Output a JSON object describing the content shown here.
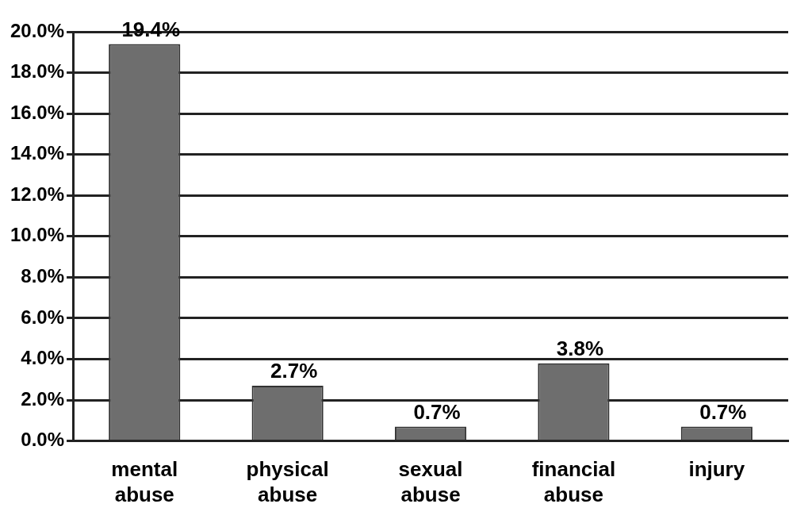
{
  "chart_data": {
    "type": "bar",
    "categories": [
      "mental abuse",
      "physical abuse",
      "sexual abuse",
      "financial abuse",
      "injury"
    ],
    "values": [
      19.4,
      2.7,
      0.7,
      3.8,
      0.7
    ],
    "value_labels": [
      "19.4%",
      "2.7%",
      "0.7%",
      "3.8%",
      "0.7%"
    ],
    "color": "#6e6e6e",
    "ylim": [
      0,
      20
    ],
    "yticks": [
      {
        "value": 0,
        "label": "0.0%"
      },
      {
        "value": 2,
        "label": "2.0%"
      },
      {
        "value": 4,
        "label": "4.0%"
      },
      {
        "value": 6,
        "label": "6.0%"
      },
      {
        "value": 8,
        "label": "8.0%"
      },
      {
        "value": 10,
        "label": "10.0%"
      },
      {
        "value": 12,
        "label": "12.0%"
      },
      {
        "value": 14,
        "label": "14.0%"
      },
      {
        "value": 16,
        "label": "16.0%"
      },
      {
        "value": 18,
        "label": "18.0%"
      },
      {
        "value": 20,
        "label": "20.0%"
      }
    ],
    "grid": true,
    "data_labels": true
  }
}
